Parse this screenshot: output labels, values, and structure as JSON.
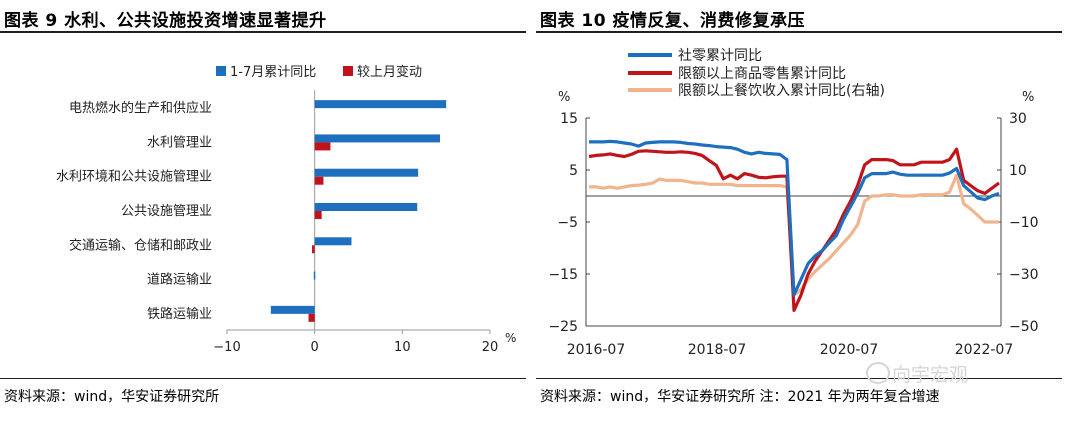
{
  "left": {
    "title": "图表 9  水利、公共设施投资增速显著提升",
    "source": "资料来源：wind，华安证券研究所"
  },
  "right": {
    "title": "图表 10  疫情反复、消费修复承压",
    "source": "资料来源：wind，华安证券研究所 注：2021 年为两年复合增速",
    "watermark": "向宇宏观"
  },
  "colors": {
    "blue": "#1f6fbf",
    "red": "#c0141c",
    "peach": "#f2b48f"
  },
  "chart_data": [
    {
      "type": "bar",
      "orientation": "horizontal",
      "categories": [
        "电热燃水的生产和供应业",
        "水利管理业",
        "水利环境和公共设施管理业",
        "公共设施管理业",
        "交通运输、仓储和邮政业",
        "道路运输业",
        "铁路运输业"
      ],
      "series": [
        {
          "name": "1-7月累计同比",
          "values": [
            15.0,
            14.3,
            11.8,
            11.7,
            4.2,
            -0.1,
            -5.0
          ]
        },
        {
          "name": "较上月变动",
          "values": [
            0.0,
            1.8,
            1.0,
            0.8,
            -0.3,
            0.0,
            -0.7
          ]
        }
      ],
      "xlim": [
        -10,
        20
      ],
      "xticks": [
        "−10",
        "0",
        "10",
        "20"
      ],
      "xunit": "%",
      "legend": "top"
    },
    {
      "type": "line",
      "x_ticks": [
        "2016-07",
        "2018-07",
        "2020-07",
        "2022-07"
      ],
      "left_axis": {
        "unit": "%",
        "range": [
          -25,
          15
        ],
        "ticks": [
          "15",
          "5",
          "−5",
          "−15",
          "−25"
        ]
      },
      "right_axis": {
        "unit": "%",
        "range": [
          -50,
          30
        ],
        "ticks": [
          "30",
          "10",
          "−10",
          "−30",
          "−50"
        ]
      },
      "legend": "top-left",
      "series": [
        {
          "name": "社零累计同比",
          "axis": "left",
          "values": [
            10.4,
            10.4,
            10.4,
            10.5,
            10.4,
            10.2,
            10.0,
            9.6,
            10.2,
            10.3,
            10.4,
            10.4,
            10.4,
            10.3,
            10.1,
            10.0,
            9.8,
            9.7,
            9.5,
            9.4,
            9.3,
            9.0,
            8.4,
            8.1,
            8.4,
            8.2,
            8.1,
            8.0,
            7.0,
            -19.0,
            -16.0,
            -13.0,
            -11.5,
            -10.5,
            -9.0,
            -7.6,
            -4.5,
            -2.0,
            0.5,
            3.5,
            4.3,
            4.3,
            4.3,
            4.6,
            4.2,
            4.0,
            4.0,
            4.0,
            4.0,
            4.0,
            4.0,
            4.4,
            5.3,
            2.0,
            0.8,
            -0.4,
            -0.7,
            0.0,
            0.5
          ]
        },
        {
          "name": "限额以上商品零售累计同比",
          "axis": "left",
          "values": [
            7.6,
            7.8,
            7.9,
            8.1,
            7.8,
            7.6,
            8.0,
            8.6,
            8.7,
            8.6,
            8.5,
            8.4,
            8.4,
            8.5,
            8.4,
            8.2,
            7.8,
            6.8,
            5.9,
            3.3,
            4.0,
            3.3,
            4.3,
            4.0,
            3.6,
            3.5,
            3.7,
            3.8,
            3.8,
            -22.0,
            -19.0,
            -15.0,
            -12.5,
            -10.5,
            -8.5,
            -6.5,
            -3.5,
            -1.0,
            2.0,
            6.0,
            7.0,
            7.0,
            7.0,
            6.8,
            6.0,
            6.0,
            6.0,
            6.5,
            6.5,
            6.5,
            6.5,
            7.0,
            9.0,
            3.0,
            2.0,
            1.0,
            0.5,
            1.5,
            2.5
          ]
        },
        {
          "name": "限额以上餐饮收入累计同比(右轴)",
          "axis": "right",
          "values": [
            3.5,
            3.5,
            3.0,
            3.5,
            3.0,
            3.5,
            4.0,
            4.2,
            4.5,
            5.0,
            6.5,
            6.0,
            6.0,
            6.0,
            5.5,
            5.0,
            5.0,
            4.5,
            4.5,
            4.5,
            4.5,
            4.0,
            4.0,
            4.0,
            4.0,
            4.0,
            4.0,
            4.0,
            3.5,
            -38.0,
            -36.0,
            -32.0,
            -29.0,
            -26.5,
            -24.0,
            -21.0,
            -18.0,
            -15.0,
            -11.0,
            -2.0,
            0.0,
            0.0,
            0.5,
            0.5,
            0.0,
            0.0,
            0.0,
            0.5,
            0.5,
            0.5,
            0.5,
            1.5,
            8.0,
            -3.0,
            -5.0,
            -7.5,
            -10.0,
            -10.0,
            -10.0
          ]
        }
      ]
    }
  ]
}
